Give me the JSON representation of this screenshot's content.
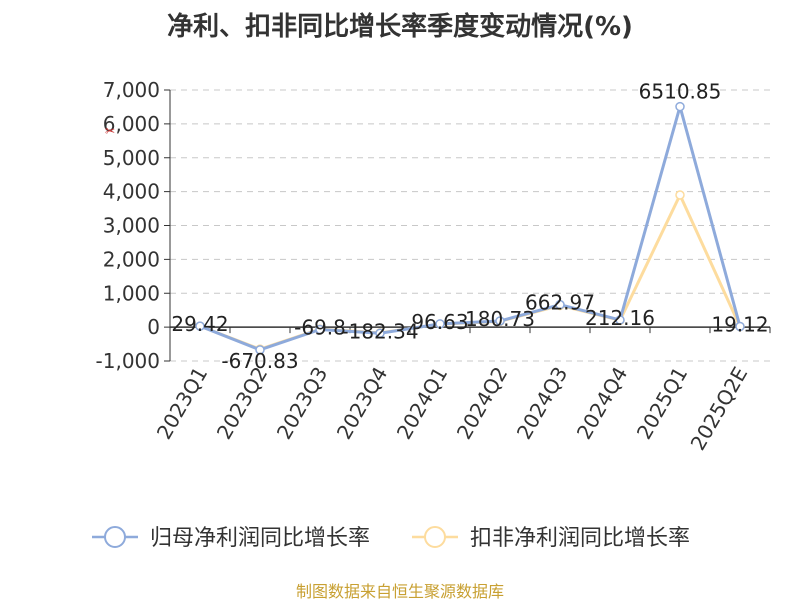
{
  "title": "净利、扣非同比增长率季度变动情况(%)",
  "source": "制图数据来自恒生聚源数据库",
  "chart_data": {
    "type": "line",
    "title": "净利、扣非同比增长率季度变动情况(%)",
    "categories": [
      "2023Q1",
      "2023Q2",
      "2023Q3",
      "2023Q4",
      "2024Q1",
      "2024Q2",
      "2024Q3",
      "2024Q4",
      "2025Q1",
      "2025Q2E"
    ],
    "ylim": [
      -1000,
      7000
    ],
    "yticks": [
      7000,
      6000,
      5000,
      4000,
      3000,
      2000,
      1000,
      0,
      -1000
    ],
    "ytick_labels": [
      "7,000",
      "6,000",
      "5,000",
      "4,000",
      "3,000",
      "2,000",
      "1,000",
      "0",
      "-1,000"
    ],
    "grid": true,
    "legend_position": "bottom",
    "series": [
      {
        "name": "归母净利润同比增长率",
        "color": "#8eaadb",
        "values": [
          29.42,
          -670.83,
          -69.8,
          -182.34,
          96.63,
          180.73,
          662.97,
          212.16,
          6510.85,
          19.12
        ],
        "labels": [
          "29.42",
          "-670.83",
          "-69.8",
          "-182.34",
          "96.63",
          "180.73",
          "662.97",
          "212.16",
          "6510.85",
          "19.12"
        ]
      },
      {
        "name": "扣非净利润同比增长率",
        "color": "#fddc9e",
        "values": [
          29,
          -650,
          -60,
          -170,
          90,
          170,
          640,
          200,
          3900,
          15
        ]
      }
    ]
  }
}
